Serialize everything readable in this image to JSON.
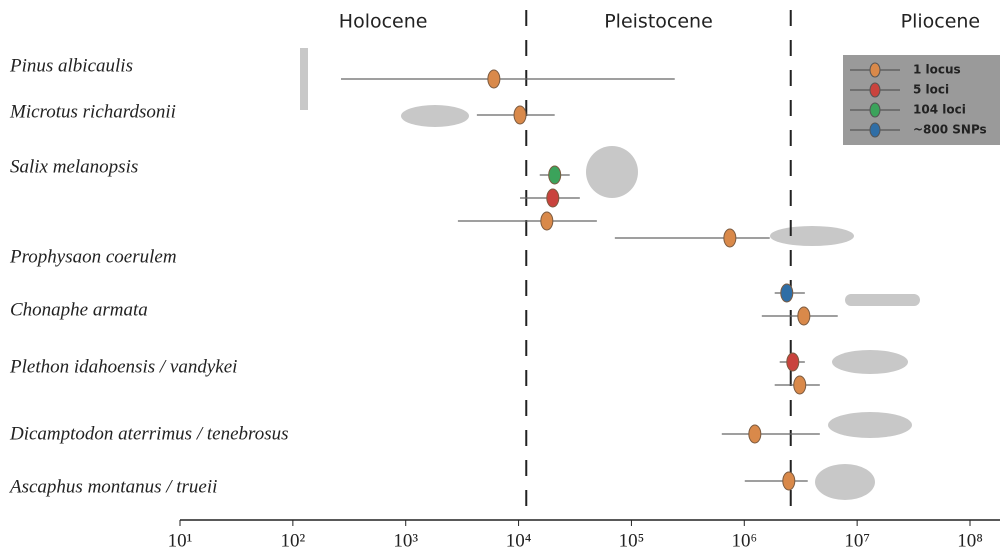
{
  "chart_data": {
    "type": "errorpoint",
    "log_x": true,
    "epochs": [
      "Holocene",
      "Pleistocene",
      "Pliocene"
    ],
    "epoch_boundaries": [
      11700,
      2580000
    ],
    "categories": [
      "Pinus albicaulis",
      "Microtus richardsonii",
      "Salix melanopsis",
      "Prophysaon coerulem",
      "Chonaphe armata",
      "Plethon idahoensis / vandykei",
      "Dicamptodon aterrimus / tenebrosus",
      "Ascaphus montanus / trueii"
    ],
    "series": [
      {
        "name": "1 locus",
        "color": "#d9894a",
        "values": [
          6040,
          10300,
          17800,
          745000,
          3370000,
          3100000,
          1240000,
          2480000
        ],
        "lower": [
          267,
          4270,
          2900,
          71300,
          1430000,
          1860000,
          632000,
          1010000
        ],
        "upper": [
          242000,
          20900,
          49400,
          1680000,
          6730000,
          4670000,
          4670000,
          3650000
        ]
      },
      {
        "name": "5 loci",
        "color": "#c9433d",
        "values": [
          null,
          null,
          20100,
          null,
          null,
          2690000,
          null,
          null
        ],
        "lower": [
          null,
          null,
          10300,
          null,
          null,
          2060000,
          null,
          null
        ],
        "upper": [
          null,
          null,
          34900,
          null,
          null,
          3440000,
          null,
          null
        ]
      },
      {
        "name": "104 loci",
        "color": "#3ba35b",
        "values": [
          null,
          null,
          20900,
          null,
          null,
          null,
          null,
          null
        ],
        "lower": [
          null,
          null,
          15400,
          null,
          null,
          null,
          null,
          null
        ],
        "upper": [
          null,
          null,
          28400,
          null,
          null,
          null,
          null,
          null
        ]
      },
      {
        "name": "~800 SNPs",
        "color": "#2f6ea6",
        "values": [
          null,
          null,
          null,
          null,
          2380000,
          null,
          null,
          null
        ],
        "lower": [
          null,
          null,
          null,
          null,
          1860000,
          null,
          null,
          null
        ],
        "upper": [
          null,
          null,
          null,
          null,
          3440000,
          null,
          null,
          null
        ]
      }
    ],
    "xlim": [
      10,
      100000000
    ],
    "xticks": [
      {
        "value": 10,
        "label": "10¹"
      },
      {
        "value": 100,
        "label": "10²"
      },
      {
        "value": 1000,
        "label": "10³"
      },
      {
        "value": 10000,
        "label": "10⁴"
      },
      {
        "value": 100000,
        "label": "10⁵"
      },
      {
        "value": 1000000,
        "label": "10⁶"
      },
      {
        "value": 10000000,
        "label": "10⁷"
      },
      {
        "value": 100000000,
        "label": "10⁸"
      }
    ],
    "legend": "top-right"
  }
}
